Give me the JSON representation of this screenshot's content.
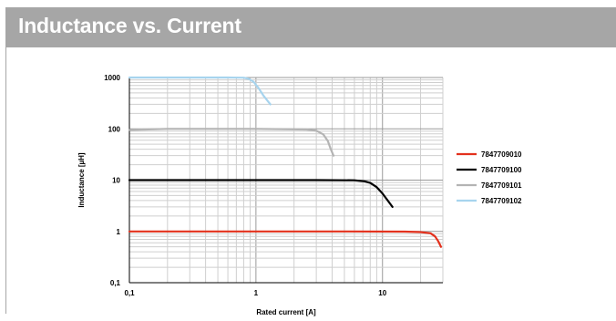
{
  "chart_data": {
    "type": "line",
    "title": "Inductance vs. Current",
    "xlabel": "Rated current  [A]",
    "ylabel": "Inductance [µH]",
    "xscale": "log",
    "yscale": "log",
    "xlim": [
      0.1,
      30
    ],
    "ylim": [
      0.1,
      1000
    ],
    "grid": true,
    "legend": "right",
    "x_ticks": [
      {
        "value": 0.1,
        "label": "0,1"
      },
      {
        "value": 1,
        "label": "1"
      },
      {
        "value": 10,
        "label": "10"
      }
    ],
    "y_ticks": [
      {
        "value": 0.1,
        "label": "0,1"
      },
      {
        "value": 1,
        "label": "1"
      },
      {
        "value": 10,
        "label": "10"
      },
      {
        "value": 100,
        "label": "100"
      },
      {
        "value": 1000,
        "label": "1000"
      }
    ],
    "series": [
      {
        "name": "7847709010",
        "color": "#e3311d",
        "points": [
          [
            0.1,
            1
          ],
          [
            5,
            1
          ],
          [
            15,
            0.99
          ],
          [
            20,
            0.97
          ],
          [
            24,
            0.92
          ],
          [
            26,
            0.8
          ],
          [
            27.5,
            0.65
          ],
          [
            29,
            0.5
          ]
        ]
      },
      {
        "name": "7847709100",
        "color": "#000000",
        "points": [
          [
            0.1,
            10
          ],
          [
            3,
            10
          ],
          [
            6,
            9.9
          ],
          [
            7.2,
            9.5
          ],
          [
            8,
            8.8
          ],
          [
            9,
            7.3
          ],
          [
            10,
            5.5
          ],
          [
            11,
            4
          ],
          [
            12,
            3
          ]
        ]
      },
      {
        "name": "7847709101",
        "color": "#b4b4b4",
        "points": [
          [
            0.1,
            95
          ],
          [
            0.2,
            100
          ],
          [
            1,
            100
          ],
          [
            2.5,
            97
          ],
          [
            3.0,
            92
          ],
          [
            3.4,
            78
          ],
          [
            3.7,
            58
          ],
          [
            3.9,
            40
          ],
          [
            4.1,
            30
          ]
        ]
      },
      {
        "name": "7847709102",
        "color": "#a7d4ee",
        "points": [
          [
            0.1,
            1000
          ],
          [
            0.6,
            1000
          ],
          [
            0.8,
            990
          ],
          [
            0.88,
            940
          ],
          [
            0.96,
            820
          ],
          [
            1.05,
            620
          ],
          [
            1.15,
            440
          ],
          [
            1.3,
            300
          ]
        ]
      }
    ]
  }
}
